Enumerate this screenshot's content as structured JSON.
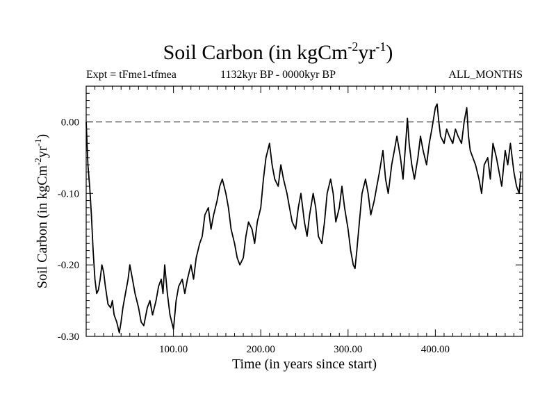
{
  "chart_data": {
    "type": "line",
    "title": {
      "main": "Soil Carbon (in kgCm",
      "sup1": "-2",
      "mid": "yr",
      "sup2": "-1",
      "end": ")"
    },
    "subtitle_left": "Expt = tFme1-tfmea",
    "subtitle_center": "1132kyr BP - 0000kyr BP",
    "subtitle_right": "ALL_MONTHS",
    "xlabel": "Time (in years since start)",
    "ylabel": {
      "main": "Soil Carbon (in kgCm",
      "sup1": "-2",
      "mid": "yr",
      "sup2": "-1",
      "end": ")"
    },
    "xlim": [
      0,
      500
    ],
    "ylim": [
      -0.3,
      0.05
    ],
    "xticks": [
      100,
      200,
      300,
      400
    ],
    "xtick_labels": [
      "100.00",
      "200.00",
      "300.00",
      "400.00"
    ],
    "yticks": [
      0.0,
      -0.1,
      -0.2,
      -0.3
    ],
    "ytick_labels": [
      "0.00",
      "-0.10",
      "-0.20",
      "-0.30"
    ],
    "reference_line": {
      "y": 0.0,
      "style": "dashed"
    },
    "series": [
      {
        "name": "Soil Carbon",
        "x": [
          0,
          2,
          4,
          6,
          8,
          10,
          12,
          14,
          16,
          18,
          20,
          22,
          25,
          28,
          30,
          32,
          35,
          38,
          40,
          42,
          45,
          48,
          50,
          53,
          56,
          60,
          63,
          66,
          70,
          73,
          76,
          80,
          83,
          86,
          88,
          90,
          93,
          96,
          100,
          103,
          106,
          110,
          113,
          116,
          120,
          123,
          126,
          130,
          133,
          136,
          140,
          143,
          146,
          150,
          153,
          156,
          160,
          163,
          166,
          170,
          173,
          176,
          180,
          183,
          186,
          190,
          193,
          196,
          200,
          203,
          206,
          210,
          213,
          216,
          220,
          223,
          226,
          230,
          233,
          236,
          240,
          243,
          246,
          250,
          253,
          256,
          260,
          263,
          266,
          270,
          273,
          276,
          280,
          283,
          286,
          290,
          293,
          296,
          300,
          303,
          306,
          308,
          310,
          313,
          316,
          320,
          323,
          326,
          330,
          333,
          336,
          340,
          343,
          346,
          350,
          353,
          356,
          360,
          363,
          366,
          368,
          370,
          373,
          376,
          380,
          383,
          386,
          390,
          393,
          396,
          400,
          402,
          404,
          406,
          410,
          413,
          416,
          420,
          423,
          426,
          430,
          433,
          436,
          438,
          440,
          443,
          446,
          450,
          453,
          456,
          460,
          463,
          466,
          470,
          473,
          476,
          480,
          483,
          486,
          490,
          493,
          496,
          498
        ],
        "values": [
          0.0,
          -0.06,
          -0.09,
          -0.13,
          -0.18,
          -0.22,
          -0.24,
          -0.235,
          -0.22,
          -0.2,
          -0.21,
          -0.23,
          -0.255,
          -0.26,
          -0.25,
          -0.27,
          -0.28,
          -0.295,
          -0.28,
          -0.26,
          -0.24,
          -0.22,
          -0.2,
          -0.22,
          -0.24,
          -0.26,
          -0.28,
          -0.285,
          -0.26,
          -0.25,
          -0.27,
          -0.25,
          -0.23,
          -0.22,
          -0.24,
          -0.2,
          -0.24,
          -0.27,
          -0.29,
          -0.25,
          -0.23,
          -0.22,
          -0.24,
          -0.22,
          -0.2,
          -0.22,
          -0.19,
          -0.17,
          -0.16,
          -0.13,
          -0.12,
          -0.15,
          -0.13,
          -0.11,
          -0.09,
          -0.08,
          -0.1,
          -0.12,
          -0.15,
          -0.17,
          -0.19,
          -0.2,
          -0.19,
          -0.16,
          -0.14,
          -0.15,
          -0.17,
          -0.14,
          -0.12,
          -0.08,
          -0.05,
          -0.03,
          -0.06,
          -0.08,
          -0.09,
          -0.06,
          -0.08,
          -0.1,
          -0.12,
          -0.14,
          -0.15,
          -0.12,
          -0.1,
          -0.14,
          -0.16,
          -0.13,
          -0.1,
          -0.12,
          -0.16,
          -0.17,
          -0.14,
          -0.1,
          -0.08,
          -0.1,
          -0.14,
          -0.12,
          -0.09,
          -0.12,
          -0.15,
          -0.18,
          -0.2,
          -0.205,
          -0.18,
          -0.14,
          -0.1,
          -0.08,
          -0.1,
          -0.13,
          -0.11,
          -0.09,
          -0.07,
          -0.04,
          -0.08,
          -0.1,
          -0.06,
          -0.04,
          -0.02,
          -0.05,
          -0.08,
          -0.03,
          0.005,
          -0.03,
          -0.06,
          -0.08,
          -0.05,
          -0.02,
          -0.04,
          -0.06,
          -0.03,
          -0.01,
          0.02,
          0.025,
          0.0,
          -0.02,
          -0.03,
          -0.01,
          -0.02,
          -0.03,
          -0.01,
          -0.02,
          -0.03,
          0.0,
          0.02,
          -0.02,
          -0.04,
          -0.05,
          -0.06,
          -0.08,
          -0.1,
          -0.06,
          -0.05,
          -0.08,
          -0.03,
          -0.05,
          -0.07,
          -0.09,
          -0.04,
          -0.06,
          -0.03,
          -0.07,
          -0.09,
          -0.1,
          -0.07
        ]
      }
    ]
  }
}
